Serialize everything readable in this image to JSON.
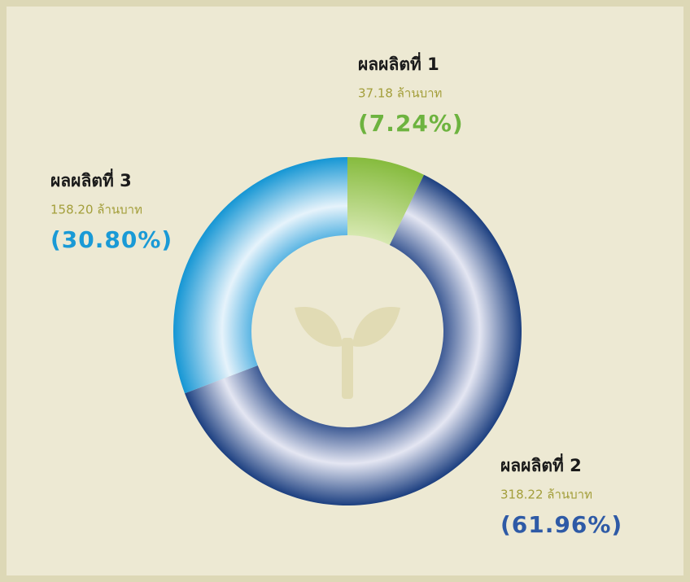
{
  "chart_data": {
    "type": "donut",
    "categories": [
      "ผลผลิตที่ 1",
      "ผลผลิตที่ 2",
      "ผลผลิตที่ 3"
    ],
    "values": [
      7.24,
      61.96,
      30.8
    ],
    "value_labels": [
      "(7.24%)",
      "(61.96%)",
      "(30.80%)"
    ],
    "amount_labels": [
      "37.18 ล้านบาท",
      "318.22 ล้านบาท",
      "158.20 ล้านบาท"
    ],
    "colors": [
      "#6db33f",
      "#2e5aa6",
      "#1a9ad6"
    ]
  }
}
